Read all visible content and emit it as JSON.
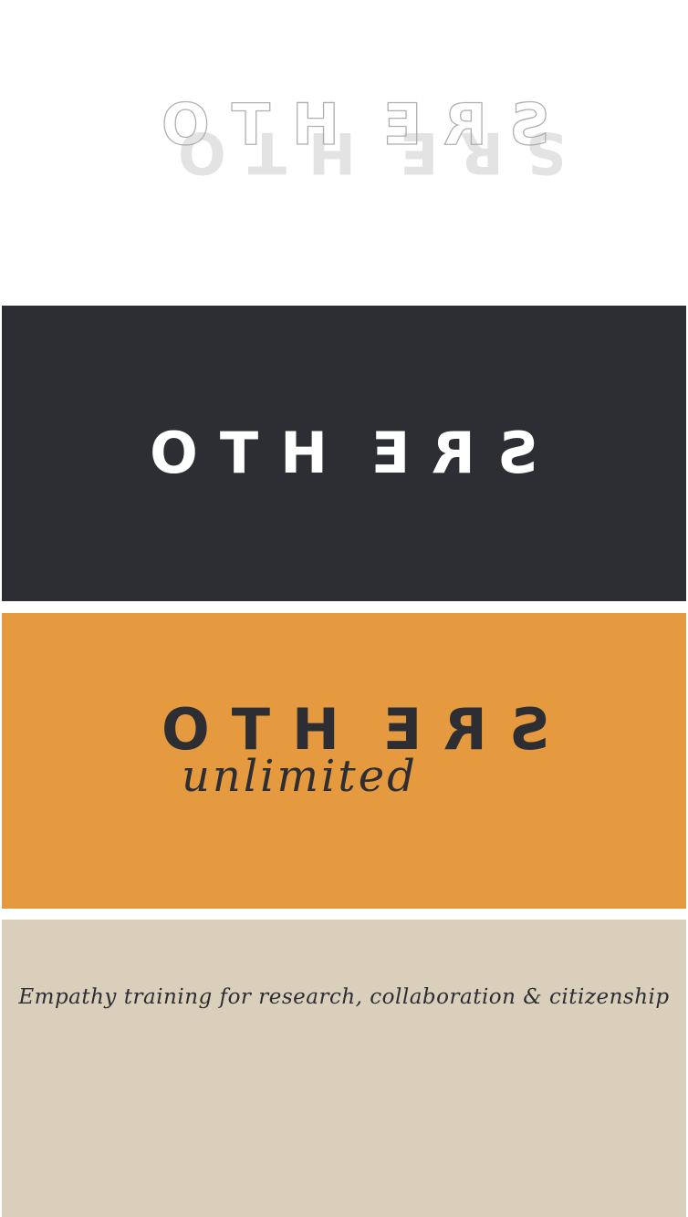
{
  "brand": {
    "wordmark_parts": [
      "OTH",
      "E",
      "R",
      "S"
    ],
    "sub_word": "unlimited",
    "tagline": "Empathy training for research, collaboration & citizenship"
  },
  "colors": {
    "dark_panel": "#2c2e33",
    "orange_panel": "#e59a3f",
    "sand_panel": "#d9cfbb",
    "ink": "#2c2e33",
    "white": "#ffffff"
  }
}
